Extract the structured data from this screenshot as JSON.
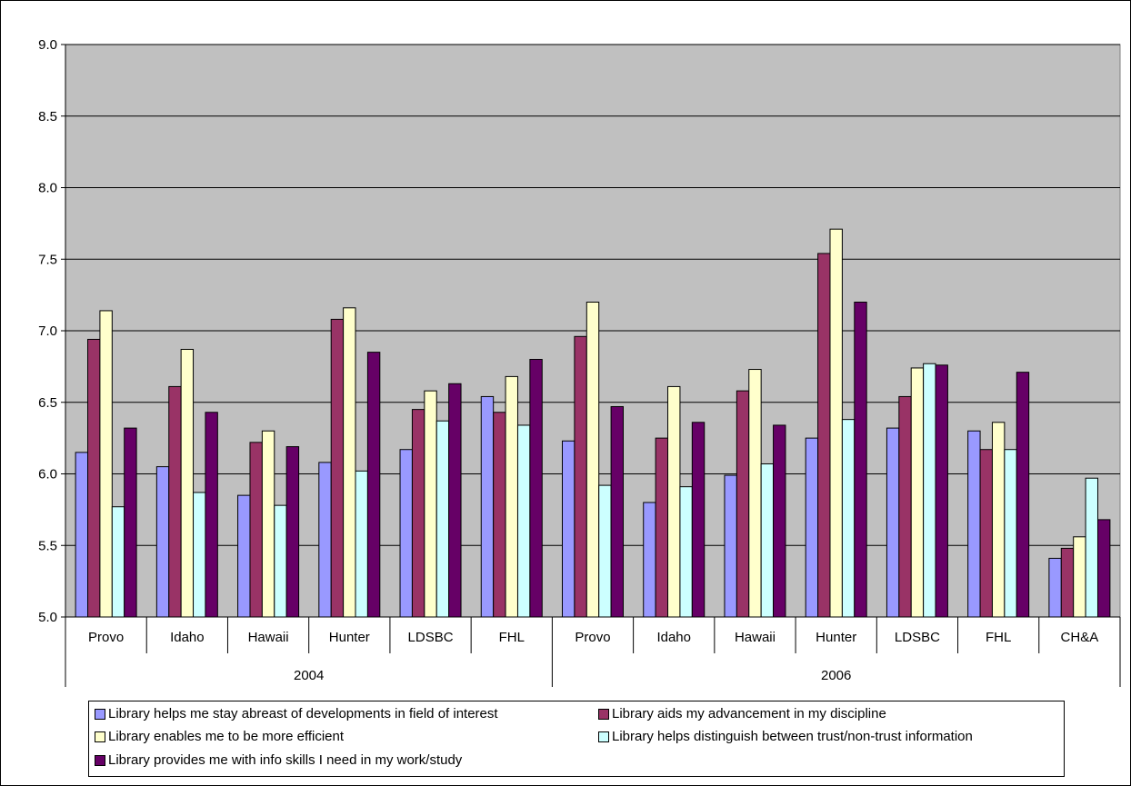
{
  "chart_data": {
    "type": "bar",
    "title": "",
    "xlabel": "",
    "ylabel": "",
    "ylim": [
      5.0,
      9.0
    ],
    "yticks": [
      "5.0",
      "5.5",
      "6.0",
      "6.5",
      "7.0",
      "7.5",
      "8.0",
      "8.5",
      "9.0"
    ],
    "grid": true,
    "legend_position": "bottom",
    "groups": [
      {
        "label": "2004",
        "categories": [
          "Provo",
          "Idaho",
          "Hawaii",
          "Hunter",
          "LDSBC",
          "FHL"
        ]
      },
      {
        "label": "2006",
        "categories": [
          "Provo",
          "Idaho",
          "Hawaii",
          "Hunter",
          "LDSBC",
          "FHL",
          "CH&A"
        ]
      }
    ],
    "categories": [
      "Provo",
      "Idaho",
      "Hawaii",
      "Hunter",
      "LDSBC",
      "FHL",
      "Provo",
      "Idaho",
      "Hawaii",
      "Hunter",
      "LDSBC",
      "FHL",
      "CH&A"
    ],
    "series": [
      {
        "name": "Library helps me stay abreast of developments in field of interest",
        "color": "#9999FF",
        "values": [
          6.15,
          6.05,
          5.85,
          6.08,
          6.17,
          6.54,
          6.23,
          5.8,
          5.99,
          6.25,
          6.32,
          6.3,
          5.41
        ]
      },
      {
        "name": "Library aids my advancement in my discipline",
        "color": "#993366",
        "values": [
          6.94,
          6.61,
          6.22,
          7.08,
          6.45,
          6.43,
          6.96,
          6.25,
          6.58,
          7.54,
          6.54,
          6.17,
          5.48
        ]
      },
      {
        "name": "Library enables me to be more efficient",
        "color": "#FFFFCC",
        "values": [
          7.14,
          6.87,
          6.3,
          7.16,
          6.58,
          6.68,
          7.2,
          6.61,
          6.73,
          7.71,
          6.74,
          6.36,
          5.56
        ]
      },
      {
        "name": "Library helps distinguish between trust/non-trust information",
        "color": "#CCFFFF",
        "values": [
          5.77,
          5.87,
          5.78,
          6.02,
          6.37,
          6.34,
          5.92,
          5.91,
          6.07,
          6.38,
          6.77,
          6.17,
          5.97
        ]
      },
      {
        "name": "Library provides me with info skills I need in my work/study",
        "color": "#660066",
        "values": [
          6.32,
          6.43,
          6.19,
          6.85,
          6.63,
          6.8,
          6.47,
          6.36,
          6.34,
          7.2,
          6.76,
          6.71,
          5.68
        ]
      }
    ]
  }
}
